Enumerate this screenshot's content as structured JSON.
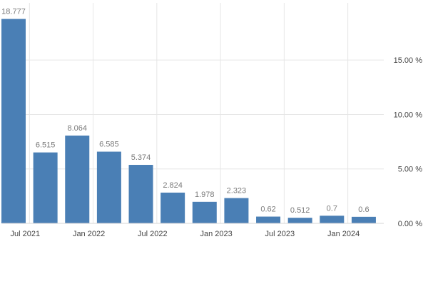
{
  "chart_data": {
    "type": "bar",
    "categories": [
      "Jun 2021",
      "Sep 2021",
      "Dec 2021",
      "Mar 2022",
      "Jun 2022",
      "Sep 2022",
      "Dec 2022",
      "Mar 2023",
      "Jun 2023",
      "Sep 2023",
      "Dec 2023",
      "Mar 2024"
    ],
    "values": [
      18.777,
      6.515,
      8.064,
      6.585,
      5.374,
      2.824,
      1.978,
      2.323,
      0.62,
      0.512,
      0.7,
      0.6
    ],
    "data_labels": [
      "18.777",
      "6.515",
      "8.064",
      "6.585",
      "5.374",
      "2.824",
      "1.978",
      "2.323",
      "0.62",
      "0.512",
      "0.7",
      "0.6"
    ],
    "x_tick_labels": [
      "Jul 2021",
      "Jan 2022",
      "Jul 2022",
      "Jan 2023",
      "Jul 2023",
      "Jan 2024"
    ],
    "y_tick_labels": [
      "0.00 %",
      "5.00 %",
      "10.00 %",
      "15.00 %"
    ],
    "y_ticks": [
      0,
      5,
      10,
      15
    ],
    "ylim": [
      0,
      19.6
    ],
    "grid": true,
    "title": "",
    "xlabel": "",
    "ylabel": "",
    "colors": {
      "bar": "#4a7fb5",
      "grid": "#e6e6e6",
      "label": "#7a7a7a",
      "tick": "#444444"
    }
  }
}
